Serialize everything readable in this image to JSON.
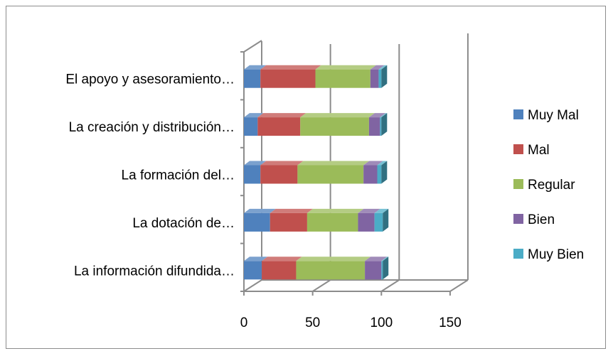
{
  "chart_data": {
    "type": "bar",
    "orientation": "horizontal",
    "stacked": true,
    "style": "3d",
    "categories": [
      "El apoyo y asesoramiento…",
      "La creación y distribución…",
      "La formación del…",
      "La dotación de…",
      "La información difundida…"
    ],
    "series": [
      {
        "name": "Muy Mal",
        "color": "#4f81bd",
        "values": [
          12,
          10,
          12,
          19,
          13
        ]
      },
      {
        "name": "Mal",
        "color": "#c0504d",
        "values": [
          40,
          31,
          27,
          27,
          25
        ]
      },
      {
        "name": "Regular",
        "color": "#9bbb59",
        "values": [
          40,
          50,
          48,
          37,
          50
        ]
      },
      {
        "name": "Bien",
        "color": "#8064a2",
        "values": [
          6,
          8,
          10,
          12,
          12
        ]
      },
      {
        "name": "Muy Bien",
        "color": "#4bacc6",
        "values": [
          2,
          1,
          3,
          6,
          1
        ]
      }
    ],
    "xlim": [
      0,
      150
    ],
    "xticks": [
      "0",
      "50",
      "100",
      "150"
    ],
    "legend": "right",
    "grid": false
  }
}
